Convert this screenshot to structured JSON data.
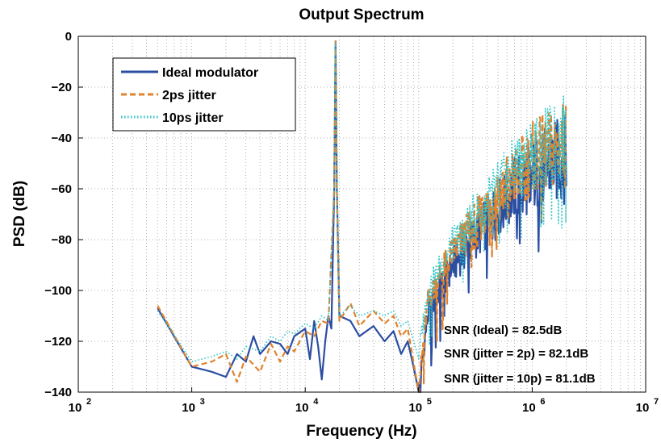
{
  "chart_data": {
    "type": "line",
    "title": "Output Spectrum",
    "xlabel": "Frequency (Hz)",
    "ylabel": "PSD (dB)",
    "x_scale": "log",
    "xlim": [
      100,
      10000000
    ],
    "ylim": [
      -140,
      0
    ],
    "x_ticks": [
      {
        "base": "10",
        "exp": "2",
        "value": 100
      },
      {
        "base": "10",
        "exp": "3",
        "value": 1000
      },
      {
        "base": "10",
        "exp": "4",
        "value": 10000
      },
      {
        "base": "10",
        "exp": "5",
        "value": 100000
      },
      {
        "base": "10",
        "exp": "6",
        "value": 1000000
      },
      {
        "base": "10",
        "exp": "7",
        "value": 10000000
      }
    ],
    "y_ticks": [
      "0",
      "−20",
      "−40",
      "−60",
      "−80",
      "−100",
      "−120",
      "−140"
    ],
    "y_tick_values": [
      0,
      -20,
      -40,
      -60,
      -80,
      -100,
      -120,
      -140
    ],
    "grid": true,
    "legend_placement": "top-left",
    "series": [
      {
        "name": "Ideal modulator",
        "color": "#2b4ea2",
        "style": "solid",
        "points": [
          [
            500,
            -107
          ],
          [
            1000,
            -130
          ],
          [
            1500,
            -132
          ],
          [
            2000,
            -134
          ],
          [
            2500,
            -125
          ],
          [
            3000,
            -128
          ],
          [
            3500,
            -118
          ],
          [
            4000,
            -125
          ],
          [
            5000,
            -120
          ],
          [
            6000,
            -121
          ],
          [
            7000,
            -125
          ],
          [
            8000,
            -118
          ],
          [
            10000,
            -115
          ],
          [
            11000,
            -127
          ],
          [
            12000,
            -112
          ],
          [
            13000,
            -122
          ],
          [
            14000,
            -135
          ],
          [
            15000,
            -120
          ],
          [
            16000,
            -110
          ],
          [
            17000,
            -115
          ],
          [
            18000,
            -60
          ],
          [
            18500,
            -2
          ],
          [
            19000,
            -60
          ],
          [
            20000,
            -110
          ],
          [
            25000,
            -112
          ],
          [
            30000,
            -118
          ],
          [
            40000,
            -114
          ],
          [
            50000,
            -120
          ],
          [
            60000,
            -116
          ],
          [
            70000,
            -125
          ],
          [
            80000,
            -120
          ],
          [
            90000,
            -130
          ],
          [
            100000,
            -140
          ],
          [
            120000,
            -110
          ],
          [
            150000,
            -100
          ],
          [
            200000,
            -90
          ],
          [
            300000,
            -80
          ],
          [
            500000,
            -68
          ],
          [
            700000,
            -60
          ],
          [
            1000000,
            -55
          ],
          [
            1500000,
            -50
          ],
          [
            2000000,
            -48
          ]
        ]
      },
      {
        "name": "2ps jitter",
        "color": "#e0832e",
        "style": "dashed",
        "points": [
          [
            500,
            -106
          ],
          [
            1000,
            -130
          ],
          [
            1500,
            -128
          ],
          [
            2000,
            -125
          ],
          [
            2500,
            -136
          ],
          [
            3000,
            -126
          ],
          [
            4000,
            -132
          ],
          [
            5000,
            -121
          ],
          [
            6000,
            -128
          ],
          [
            7000,
            -122
          ],
          [
            8000,
            -124
          ],
          [
            10000,
            -116
          ],
          [
            12000,
            -118
          ],
          [
            14000,
            -112
          ],
          [
            16000,
            -113
          ],
          [
            18000,
            -60
          ],
          [
            18500,
            -1
          ],
          [
            19000,
            -60
          ],
          [
            20000,
            -112
          ],
          [
            25000,
            -105
          ],
          [
            30000,
            -114
          ],
          [
            40000,
            -108
          ],
          [
            50000,
            -113
          ],
          [
            60000,
            -110
          ],
          [
            70000,
            -118
          ],
          [
            80000,
            -115
          ],
          [
            100000,
            -138
          ],
          [
            120000,
            -105
          ],
          [
            150000,
            -95
          ],
          [
            200000,
            -85
          ],
          [
            300000,
            -75
          ],
          [
            500000,
            -62
          ],
          [
            700000,
            -55
          ],
          [
            1000000,
            -48
          ],
          [
            1500000,
            -45
          ],
          [
            2000000,
            -42
          ]
        ]
      },
      {
        "name": "10ps jitter",
        "color": "#2ec4c6",
        "style": "dotted",
        "points": [
          [
            500,
            -108
          ],
          [
            1000,
            -128
          ],
          [
            1500,
            -126
          ],
          [
            2000,
            -124
          ],
          [
            2500,
            -127
          ],
          [
            3000,
            -122
          ],
          [
            4000,
            -124
          ],
          [
            5000,
            -118
          ],
          [
            6000,
            -120
          ],
          [
            7000,
            -116
          ],
          [
            8000,
            -117
          ],
          [
            10000,
            -113
          ],
          [
            12000,
            -115
          ],
          [
            14000,
            -110
          ],
          [
            16000,
            -112
          ],
          [
            18000,
            -60
          ],
          [
            18500,
            -2
          ],
          [
            19000,
            -60
          ],
          [
            20000,
            -110
          ],
          [
            25000,
            -106
          ],
          [
            30000,
            -110
          ],
          [
            40000,
            -108
          ],
          [
            50000,
            -110
          ],
          [
            60000,
            -108
          ],
          [
            70000,
            -114
          ],
          [
            80000,
            -112
          ],
          [
            100000,
            -125
          ],
          [
            120000,
            -100
          ],
          [
            150000,
            -92
          ],
          [
            200000,
            -82
          ],
          [
            300000,
            -72
          ],
          [
            500000,
            -60
          ],
          [
            700000,
            -52
          ],
          [
            1000000,
            -46
          ],
          [
            1500000,
            -43
          ],
          [
            2000000,
            -40
          ]
        ]
      }
    ],
    "annotations": [
      "SNR (Ideal) = 82.5dB",
      "SNR (jitter = 2p) = 82.1dB",
      "SNR (jitter = 10p) = 81.1dB"
    ]
  }
}
